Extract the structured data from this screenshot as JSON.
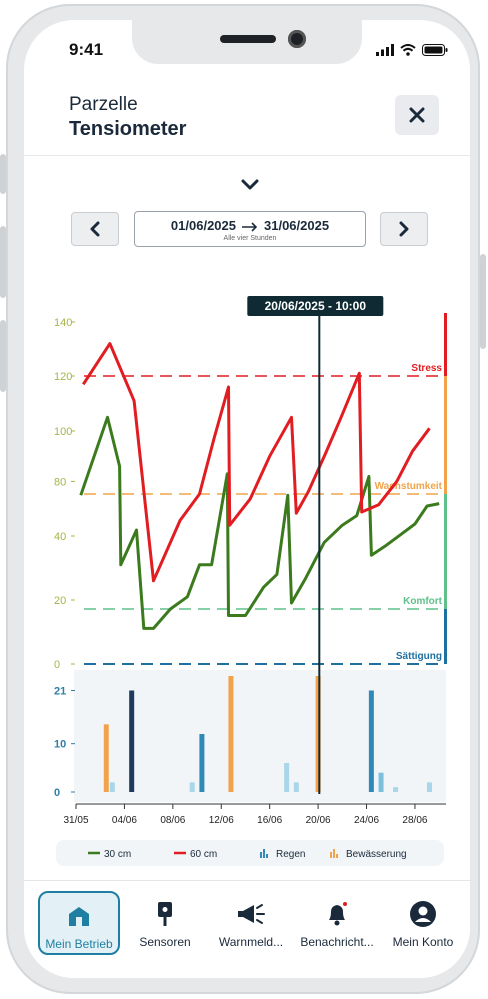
{
  "status_bar": {
    "time": "9:41"
  },
  "header": {
    "title": "Parzelle",
    "subtitle": "Tensiometer"
  },
  "icons": {
    "close": "close-icon",
    "expand": "chevron-down-icon",
    "prev": "chevron-left-icon",
    "next": "chevron-right-icon",
    "date_arrow": "arrow-right-icon"
  },
  "date_range": {
    "from": "01/06/2025",
    "to": "31/06/2025",
    "interval": "Alle vier Stunden"
  },
  "chart_data": {
    "type": "line",
    "cursor_label": "20/06/2025 - 10:00",
    "cursor_day": 20.1,
    "x_ticks": [
      "31/05",
      "04/06",
      "08/06",
      "12/06",
      "16/06",
      "20/06",
      "24/06",
      "28/06"
    ],
    "x_tick_days": [
      0,
      4,
      8,
      12,
      16,
      20,
      24,
      28
    ],
    "xlim": [
      0,
      30.4
    ],
    "y_ticks": [
      0,
      20,
      40,
      80,
      100,
      120,
      140
    ],
    "ylim": [
      0,
      145
    ],
    "thresholds": [
      {
        "label": "Stress",
        "value": 120,
        "color": "#e11d22"
      },
      {
        "label": "Wachstumkeit",
        "value": 75,
        "color": "#f0a44a"
      },
      {
        "label": "Komfort",
        "value": 17,
        "color": "#5fc08a"
      },
      {
        "label": "Sättigung",
        "value": 0,
        "color": "#1f6fa0"
      }
    ],
    "series": [
      {
        "name": "30 cm",
        "color": "#3b7a1d",
        "points": [
          [
            0.4,
            74
          ],
          [
            2.6,
            105
          ],
          [
            3.6,
            86
          ],
          [
            3.7,
            31
          ],
          [
            5.0,
            45
          ],
          [
            5.6,
            11
          ],
          [
            6.4,
            11
          ],
          [
            7.8,
            17
          ],
          [
            9.2,
            21
          ],
          [
            10.2,
            31
          ],
          [
            11.2,
            31
          ],
          [
            12.5,
            83
          ],
          [
            12.6,
            15
          ],
          [
            14.0,
            15
          ],
          [
            15.5,
            24
          ],
          [
            16.6,
            28
          ],
          [
            17.5,
            74
          ],
          [
            17.8,
            19
          ],
          [
            19.0,
            27
          ],
          [
            20.5,
            38
          ],
          [
            22.0,
            49
          ],
          [
            23.2,
            57
          ],
          [
            24.2,
            82
          ],
          [
            24.4,
            34
          ],
          [
            25.6,
            37
          ],
          [
            26.8,
            41
          ],
          [
            28.0,
            50
          ],
          [
            29.0,
            65
          ],
          [
            30.0,
            67
          ]
        ]
      },
      {
        "name": "60 cm",
        "color": "#e11d22",
        "points": [
          [
            0.6,
            117
          ],
          [
            2.8,
            132
          ],
          [
            4.8,
            111
          ],
          [
            6.4,
            26
          ],
          [
            8.6,
            53
          ],
          [
            10.2,
            75
          ],
          [
            11.4,
            97
          ],
          [
            12.6,
            116
          ],
          [
            12.7,
            49
          ],
          [
            14.4,
            71
          ],
          [
            16.0,
            90
          ],
          [
            17.8,
            105
          ],
          [
            18.2,
            59
          ],
          [
            19.2,
            76
          ],
          [
            20.6,
            91
          ],
          [
            21.9,
            105
          ],
          [
            23.4,
            121
          ],
          [
            23.6,
            60
          ],
          [
            25.0,
            66
          ],
          [
            26.5,
            80
          ],
          [
            27.8,
            92
          ],
          [
            29.2,
            101
          ]
        ]
      }
    ],
    "bars_ylim": [
      0,
      24
    ],
    "bar_y_ticks": [
      0,
      10,
      21
    ],
    "bars": [
      {
        "day": 2.5,
        "value": 14,
        "kind": "Bewässerung",
        "color": "#f2a24a"
      },
      {
        "day": 3.0,
        "value": 2,
        "kind": "Regen",
        "color": "#a9d6e8"
      },
      {
        "day": 4.6,
        "value": 21,
        "kind": "Regen",
        "color": "#1e3a5f"
      },
      {
        "day": 9.6,
        "value": 2,
        "kind": "Regen",
        "color": "#a9d6e8"
      },
      {
        "day": 10.4,
        "value": 12,
        "kind": "Regen",
        "color": "#2f8ab8"
      },
      {
        "day": 12.8,
        "value": 24,
        "kind": "Bewässerung",
        "color": "#f2a24a"
      },
      {
        "day": 17.4,
        "value": 6,
        "kind": "Regen",
        "color": "#a9d6e8"
      },
      {
        "day": 18.2,
        "value": 2,
        "kind": "Regen",
        "color": "#a9d6e8"
      },
      {
        "day": 20.0,
        "value": 24,
        "kind": "Bewässerung",
        "color": "#f2a24a"
      },
      {
        "day": 24.4,
        "value": 21,
        "kind": "Regen",
        "color": "#2f8ab8"
      },
      {
        "day": 25.2,
        "value": 4,
        "kind": "Regen",
        "color": "#7cc0dc"
      },
      {
        "day": 26.4,
        "value": 1,
        "kind": "Regen",
        "color": "#a9d6e8"
      },
      {
        "day": 29.2,
        "value": 2,
        "kind": "Regen",
        "color": "#a9d6e8"
      }
    ],
    "legend": [
      {
        "label": "30 cm",
        "type": "line",
        "color": "#3b7a1d"
      },
      {
        "label": "60 cm",
        "type": "line",
        "color": "#e11d22"
      },
      {
        "label": "Regen",
        "type": "bar",
        "color": "#2f8ab8"
      },
      {
        "label": "Bewässerung",
        "type": "bar",
        "color": "#f2a24a"
      }
    ],
    "axis_colors": {
      "y_main": "#a7b347",
      "y_bars": "#2f7fa8",
      "x": "#333333"
    }
  },
  "tabbar": {
    "items": [
      {
        "label": "Mein Betrieb",
        "icon": "farm-icon",
        "active": true
      },
      {
        "label": "Sensoren",
        "icon": "sensor-icon",
        "active": false
      },
      {
        "label": "Warnmeld...",
        "icon": "megaphone-icon",
        "active": false
      },
      {
        "label": "Benachricht...",
        "icon": "bell-icon",
        "active": false
      },
      {
        "label": "Mein Konto",
        "icon": "account-icon",
        "active": false
      }
    ]
  }
}
